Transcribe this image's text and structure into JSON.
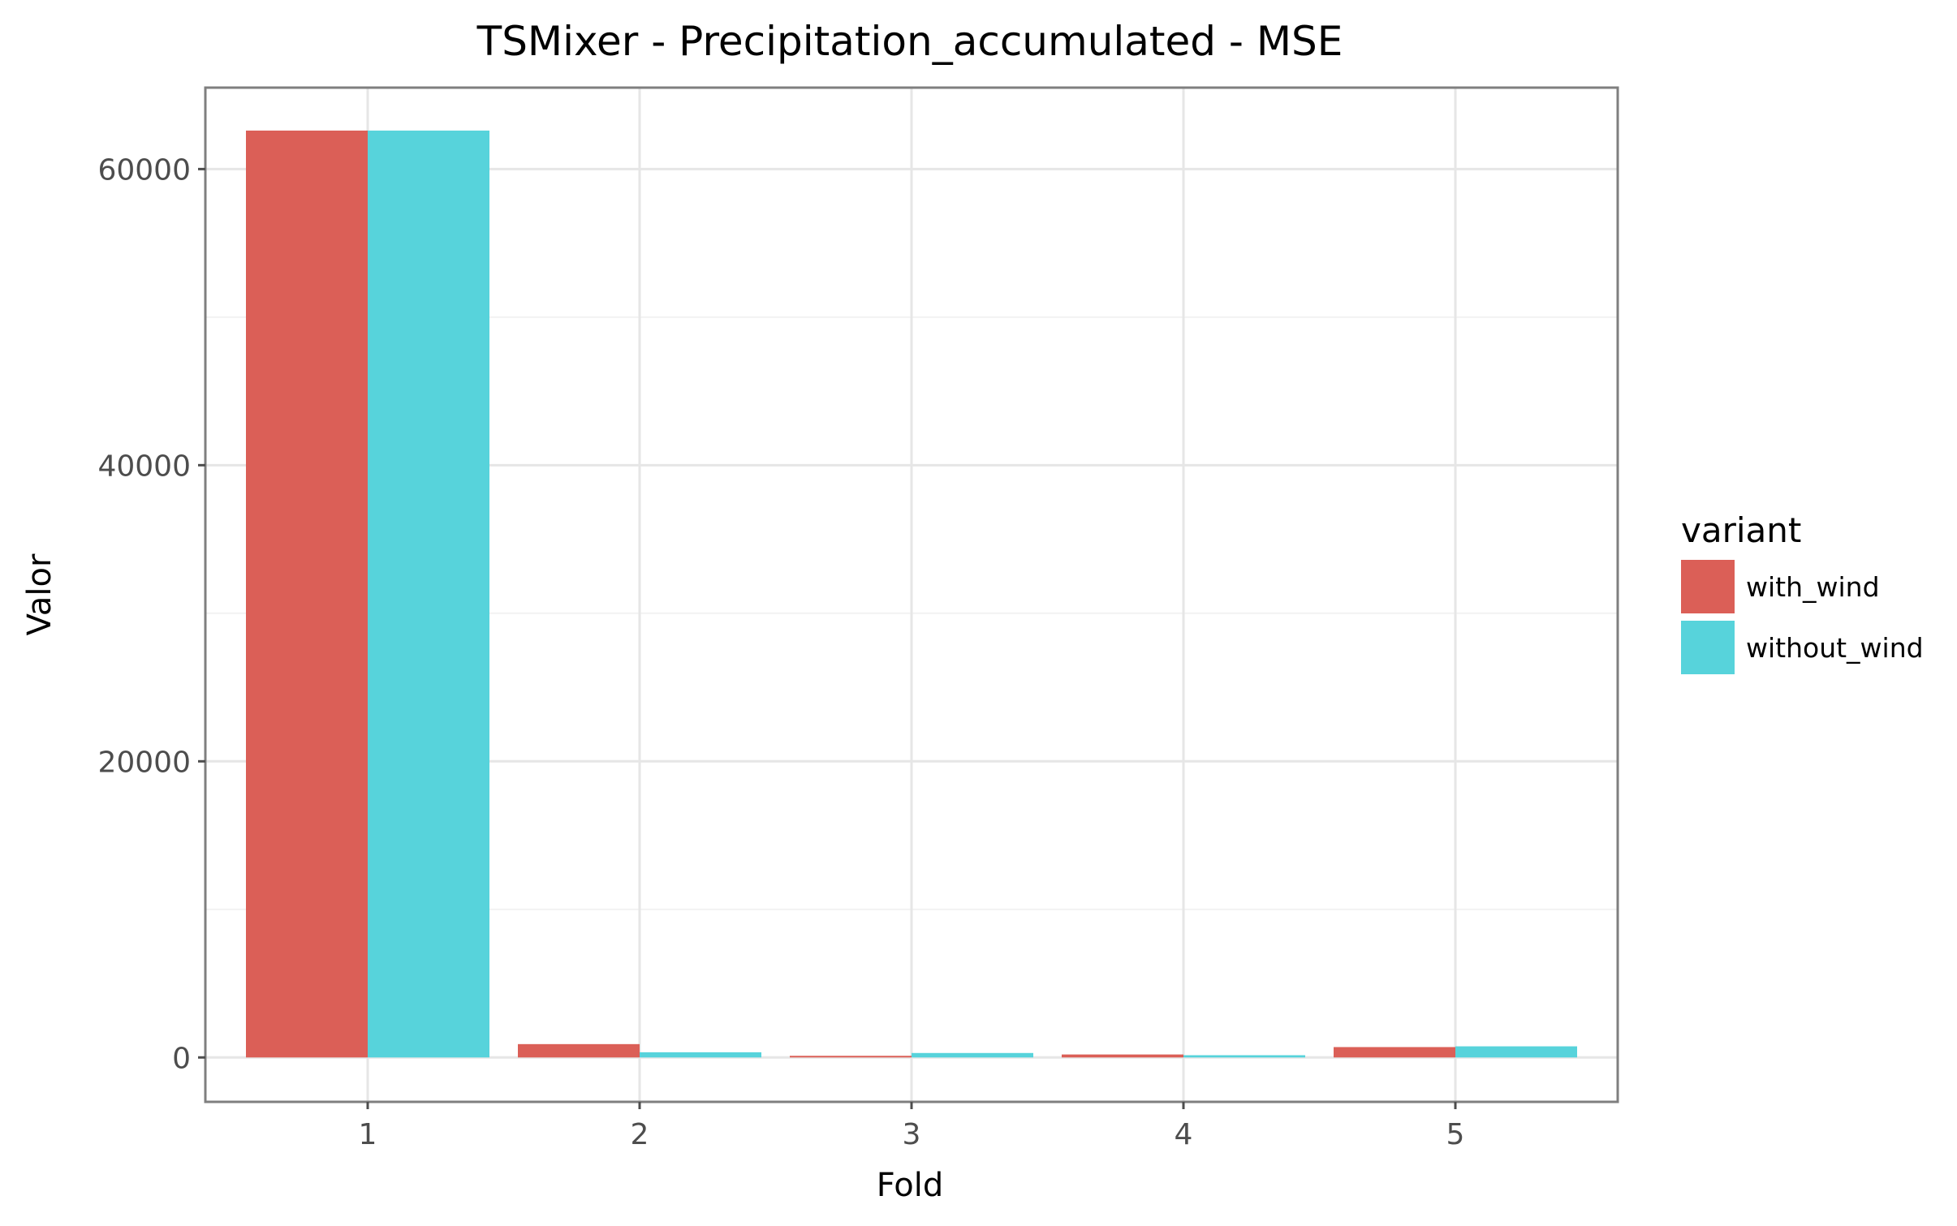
{
  "chart_data": {
    "type": "bar",
    "title": "TSMixer - Precipitation_accumulated - MSE",
    "xlabel": "Fold",
    "ylabel": "Valor",
    "categories": [
      "1",
      "2",
      "3",
      "4",
      "5"
    ],
    "series": [
      {
        "name": "with_wind",
        "color": "#db5f57",
        "values": [
          62600,
          900,
          60,
          200,
          700
        ]
      },
      {
        "name": "without_wind",
        "color": "#57d3db",
        "values": [
          62600,
          350,
          300,
          150,
          750
        ]
      }
    ],
    "ylim": [
      -3000,
      65500
    ],
    "yticks": [
      0,
      20000,
      40000,
      60000
    ],
    "ytick_labels": [
      "0",
      "20000",
      "40000",
      "60000"
    ],
    "grid": true,
    "legend": {
      "title": "variant",
      "position": "right"
    }
  }
}
